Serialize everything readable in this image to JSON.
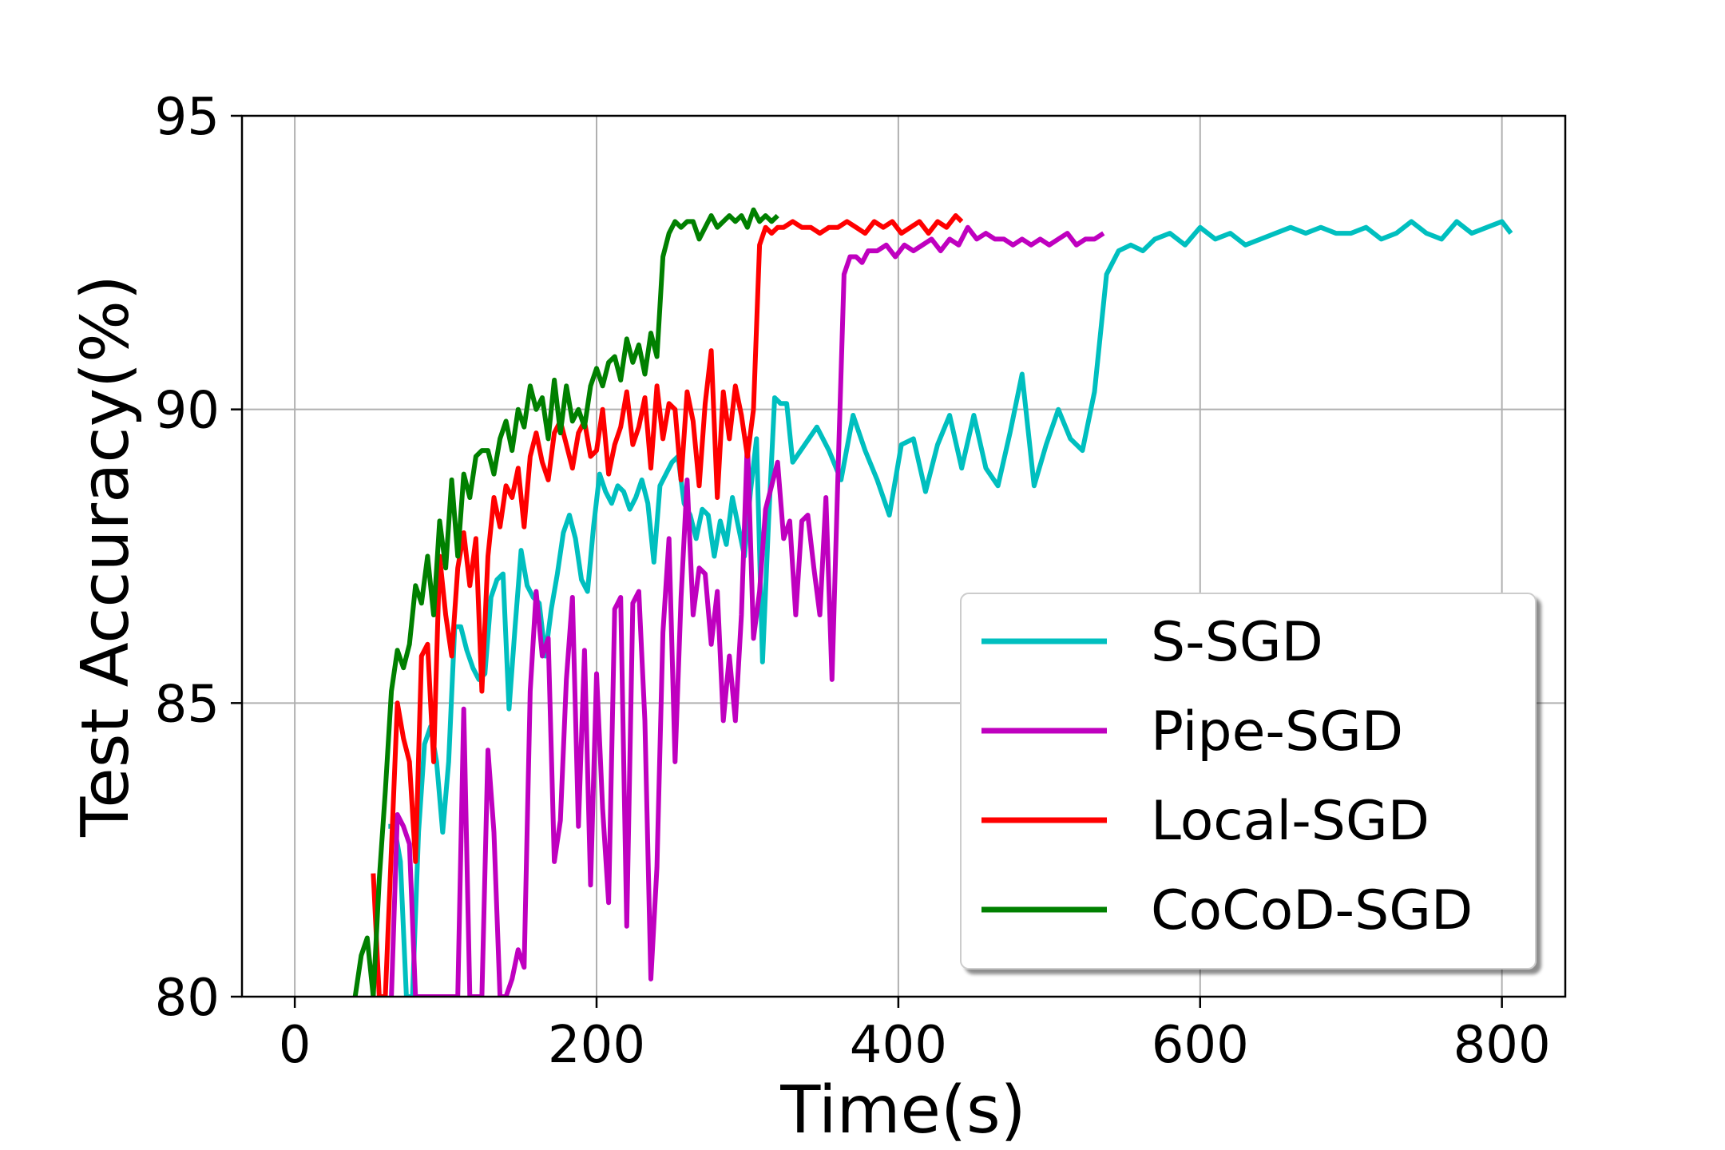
{
  "chart_data": {
    "type": "line",
    "title": "",
    "xlabel": "Time(s)",
    "ylabel": "Test Accuracy(%)",
    "xlim": [
      -35,
      842
    ],
    "ylim": [
      80,
      95
    ],
    "xticks": [
      0,
      200,
      400,
      600,
      800
    ],
    "yticks": [
      80,
      85,
      90,
      95
    ],
    "xtick_labels": [
      "0",
      "200",
      "400",
      "600",
      "800"
    ],
    "ytick_labels": [
      "80",
      "85",
      "90",
      "95"
    ],
    "grid": true,
    "legend_position": "lower-right",
    "series": [
      {
        "name": "S-SGD",
        "color": "#00bfbf",
        "x": [
          62,
          66,
          70,
          74,
          78,
          82,
          86,
          90,
          94,
          98,
          102,
          106,
          110,
          114,
          118,
          122,
          126,
          130,
          134,
          138,
          142,
          146,
          150,
          154,
          158,
          162,
          166,
          170,
          174,
          178,
          182,
          186,
          190,
          194,
          198,
          202,
          206,
          210,
          214,
          218,
          222,
          226,
          230,
          234,
          238,
          242,
          246,
          250,
          254,
          258,
          262,
          266,
          270,
          274,
          278,
          282,
          286,
          290,
          294,
          298,
          302,
          306,
          310,
          314,
          318,
          322,
          326,
          330,
          338,
          346,
          354,
          362,
          370,
          378,
          386,
          394,
          402,
          410,
          418,
          426,
          434,
          442,
          450,
          458,
          466,
          474,
          482,
          490,
          498,
          506,
          514,
          522,
          530,
          538,
          546,
          554,
          562,
          570,
          580,
          590,
          600,
          610,
          620,
          630,
          640,
          650,
          660,
          670,
          680,
          690,
          700,
          710,
          720,
          730,
          740,
          750,
          760,
          770,
          780,
          790,
          800,
          806
        ],
        "values": [
          82.9,
          82.9,
          82.3,
          80.0,
          80.0,
          82.8,
          84.3,
          84.6,
          84.0,
          82.8,
          84.0,
          86.3,
          86.3,
          85.9,
          85.6,
          85.4,
          85.5,
          86.8,
          87.1,
          87.2,
          84.9,
          86.3,
          87.6,
          87.0,
          86.8,
          86.7,
          85.8,
          86.6,
          87.2,
          87.9,
          88.2,
          87.8,
          87.1,
          86.9,
          88.0,
          88.9,
          88.6,
          88.4,
          88.7,
          88.6,
          88.3,
          88.5,
          88.8,
          88.4,
          87.4,
          88.7,
          88.9,
          89.1,
          89.2,
          88.4,
          88.2,
          87.8,
          88.3,
          88.2,
          87.5,
          88.1,
          87.7,
          88.5,
          88.0,
          87.5,
          88.6,
          89.5,
          85.7,
          88.1,
          90.2,
          90.1,
          90.1,
          89.1,
          89.4,
          89.7,
          89.3,
          88.8,
          89.9,
          89.3,
          88.8,
          88.2,
          89.4,
          89.5,
          88.6,
          89.4,
          89.9,
          89.0,
          89.9,
          89.0,
          88.7,
          89.6,
          90.6,
          88.7,
          89.4,
          90.0,
          89.5,
          89.3,
          90.3,
          92.3,
          92.7,
          92.8,
          92.7,
          92.9,
          93.0,
          92.8,
          93.1,
          92.9,
          93.0,
          92.8,
          92.9,
          93.0,
          93.1,
          93.0,
          93.1,
          93.0,
          93.0,
          93.1,
          92.9,
          93.0,
          93.2,
          93.0,
          92.9,
          93.2,
          93.0,
          93.1,
          93.2,
          93.0
        ]
      },
      {
        "name": "Pipe-SGD",
        "color": "#bf00bf",
        "x": [
          64,
          68,
          72,
          76,
          80,
          84,
          88,
          92,
          96,
          100,
          104,
          108,
          112,
          116,
          120,
          124,
          128,
          132,
          136,
          140,
          144,
          148,
          152,
          156,
          160,
          164,
          168,
          172,
          176,
          180,
          184,
          188,
          192,
          196,
          200,
          204,
          208,
          212,
          216,
          220,
          224,
          228,
          232,
          236,
          240,
          244,
          248,
          252,
          256,
          260,
          264,
          268,
          272,
          276,
          280,
          284,
          288,
          292,
          296,
          300,
          304,
          308,
          312,
          316,
          320,
          324,
          328,
          332,
          336,
          340,
          344,
          348,
          352,
          356,
          360,
          364,
          368,
          372,
          376,
          380,
          386,
          392,
          398,
          404,
          410,
          416,
          422,
          428,
          434,
          440,
          446,
          452,
          458,
          464,
          470,
          476,
          482,
          488,
          494,
          500,
          506,
          512,
          518,
          524,
          530,
          536
        ],
        "values": [
          80.0,
          83.1,
          82.9,
          82.6,
          80.0,
          80.0,
          80.0,
          80.0,
          80.0,
          80.0,
          80.0,
          80.0,
          84.9,
          80.0,
          80.0,
          80.0,
          84.2,
          82.8,
          80.0,
          80.0,
          80.3,
          80.8,
          80.5,
          85.2,
          86.9,
          85.8,
          86.1,
          82.3,
          83.0,
          85.4,
          86.8,
          82.9,
          85.9,
          81.9,
          85.5,
          83.2,
          81.6,
          86.6,
          86.8,
          81.2,
          86.7,
          86.9,
          84.7,
          80.3,
          82.2,
          86.2,
          87.8,
          84.0,
          86.8,
          88.8,
          86.5,
          87.3,
          87.2,
          86.0,
          86.9,
          84.7,
          85.8,
          84.7,
          86.5,
          89.5,
          86.1,
          86.9,
          88.3,
          88.7,
          89.1,
          87.8,
          88.1,
          86.5,
          88.1,
          88.2,
          87.3,
          86.5,
          88.5,
          85.4,
          88.9,
          92.3,
          92.6,
          92.6,
          92.5,
          92.7,
          92.7,
          92.8,
          92.6,
          92.8,
          92.7,
          92.8,
          92.9,
          92.7,
          92.9,
          92.8,
          93.1,
          92.9,
          93.0,
          92.9,
          92.9,
          92.8,
          92.9,
          92.8,
          92.9,
          92.8,
          92.9,
          93.0,
          92.8,
          92.9,
          92.9,
          93.0
        ]
      },
      {
        "name": "Local-SGD",
        "color": "#ff0000",
        "x": [
          52,
          56,
          60,
          64,
          68,
          72,
          76,
          80,
          84,
          88,
          92,
          96,
          100,
          104,
          108,
          112,
          116,
          120,
          124,
          128,
          132,
          136,
          140,
          144,
          148,
          152,
          156,
          160,
          164,
          168,
          172,
          176,
          180,
          184,
          188,
          192,
          196,
          200,
          204,
          208,
          212,
          216,
          220,
          224,
          228,
          232,
          236,
          240,
          244,
          248,
          252,
          256,
          260,
          264,
          268,
          272,
          276,
          280,
          284,
          288,
          292,
          296,
          300,
          304,
          308,
          312,
          316,
          320,
          324,
          330,
          336,
          342,
          348,
          354,
          360,
          366,
          372,
          378,
          384,
          390,
          396,
          402,
          408,
          414,
          420,
          426,
          432,
          438,
          442
        ],
        "values": [
          82.1,
          80.0,
          80.0,
          82.5,
          85.0,
          84.4,
          84.0,
          82.3,
          85.8,
          86.0,
          84.0,
          87.5,
          86.5,
          85.8,
          87.3,
          87.9,
          87.0,
          87.8,
          85.2,
          87.5,
          88.5,
          88.0,
          88.7,
          88.5,
          89.0,
          88.0,
          89.2,
          89.6,
          89.1,
          88.8,
          89.6,
          89.8,
          89.4,
          89.0,
          89.6,
          89.8,
          89.2,
          89.3,
          90.0,
          88.9,
          89.4,
          89.7,
          90.3,
          89.4,
          89.7,
          90.2,
          89.0,
          90.4,
          89.5,
          90.1,
          90.0,
          88.8,
          90.3,
          89.8,
          88.7,
          90.1,
          91.0,
          88.5,
          90.3,
          89.5,
          90.4,
          89.9,
          89.2,
          90.0,
          92.8,
          93.1,
          93.0,
          93.1,
          93.1,
          93.2,
          93.1,
          93.1,
          93.0,
          93.1,
          93.1,
          93.2,
          93.1,
          93.0,
          93.2,
          93.1,
          93.2,
          93.0,
          93.1,
          93.2,
          93.0,
          93.2,
          93.1,
          93.3,
          93.2
        ]
      },
      {
        "name": "CoCoD-SGD",
        "color": "#008000",
        "x": [
          40,
          44,
          48,
          52,
          56,
          60,
          64,
          68,
          72,
          76,
          80,
          84,
          88,
          92,
          96,
          100,
          104,
          108,
          112,
          116,
          120,
          124,
          128,
          132,
          136,
          140,
          144,
          148,
          152,
          156,
          160,
          164,
          168,
          172,
          176,
          180,
          184,
          188,
          192,
          196,
          200,
          204,
          208,
          212,
          216,
          220,
          224,
          228,
          232,
          236,
          240,
          244,
          248,
          252,
          256,
          260,
          264,
          268,
          272,
          276,
          280,
          284,
          288,
          292,
          296,
          300,
          304,
          308,
          312,
          316,
          320
        ],
        "values": [
          80.0,
          80.7,
          81.0,
          80.0,
          82.0,
          83.5,
          85.2,
          85.9,
          85.6,
          86.0,
          87.0,
          86.7,
          87.5,
          86.5,
          88.1,
          87.3,
          88.8,
          87.5,
          88.9,
          88.5,
          89.2,
          89.3,
          89.3,
          88.9,
          89.5,
          89.8,
          89.3,
          90.0,
          89.7,
          90.4,
          90.0,
          90.2,
          89.5,
          90.5,
          89.6,
          90.4,
          89.8,
          90.0,
          89.7,
          90.4,
          90.7,
          90.4,
          90.8,
          90.9,
          90.5,
          91.2,
          90.8,
          91.1,
          90.6,
          91.3,
          90.9,
          92.6,
          93.0,
          93.2,
          93.1,
          93.2,
          93.2,
          92.9,
          93.1,
          93.3,
          93.1,
          93.2,
          93.3,
          93.2,
          93.3,
          93.1,
          93.4,
          93.2,
          93.3,
          93.2,
          93.3
        ]
      }
    ]
  }
}
